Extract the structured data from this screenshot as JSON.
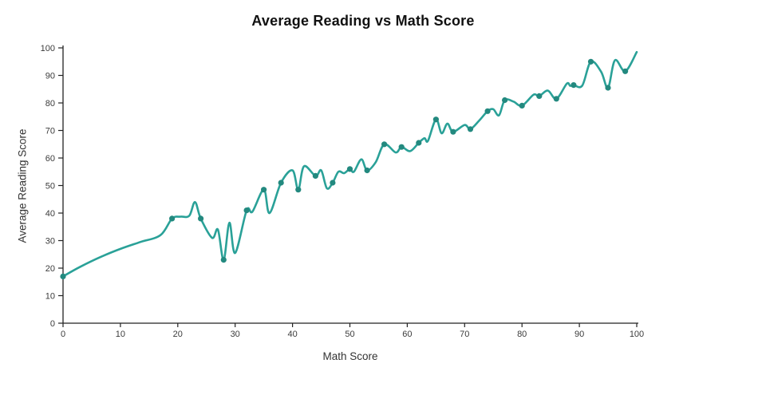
{
  "title": "Average Reading vs Math Score",
  "chart_data": {
    "type": "line",
    "title": "Average Reading vs Math Score",
    "xlabel": "Math Score",
    "ylabel": "Average Reading Score",
    "xlim": [
      0,
      100
    ],
    "ylim": [
      0,
      100
    ],
    "xticks": [
      0,
      10,
      20,
      30,
      40,
      50,
      60,
      70,
      80,
      90,
      100
    ],
    "yticks": [
      0,
      10,
      20,
      30,
      40,
      50,
      60,
      70,
      80,
      90,
      100
    ],
    "grid": false,
    "legend": false,
    "line_shape": "spline",
    "line_color": "#2aa198",
    "marker_color": "#23897f",
    "axis_color": "#222222",
    "series": [
      {
        "name": "Average Reading Score",
        "note": "points are [math_score, avg_reading_score, has_marker]",
        "points": [
          [
            0,
            17,
            1
          ],
          [
            3,
            20.5,
            0
          ],
          [
            6.5,
            24,
            0
          ],
          [
            10,
            27,
            0
          ],
          [
            13.5,
            29.5,
            0
          ],
          [
            17,
            32,
            0
          ],
          [
            19,
            38,
            1
          ],
          [
            20.5,
            38.7,
            0
          ],
          [
            22,
            39,
            0
          ],
          [
            23,
            44,
            0
          ],
          [
            24,
            38,
            1
          ],
          [
            26,
            31,
            0
          ],
          [
            27,
            34,
            0
          ],
          [
            28,
            23,
            1
          ],
          [
            29,
            36.5,
            0
          ],
          [
            30,
            25.5,
            0
          ],
          [
            32,
            41,
            1
          ],
          [
            33,
            40.5,
            0
          ],
          [
            35,
            48.5,
            1
          ],
          [
            36,
            40,
            0
          ],
          [
            38,
            51,
            1
          ],
          [
            40,
            55.5,
            0
          ],
          [
            41,
            48.5,
            1
          ],
          [
            42,
            57,
            0
          ],
          [
            44,
            53.5,
            1
          ],
          [
            45,
            55.5,
            0
          ],
          [
            46,
            49,
            0
          ],
          [
            47,
            51,
            1
          ],
          [
            48,
            55,
            0
          ],
          [
            49,
            54.5,
            0
          ],
          [
            50,
            56,
            1
          ],
          [
            50.7,
            55,
            0
          ],
          [
            52,
            59.5,
            0
          ],
          [
            53,
            55.5,
            1
          ],
          [
            54.5,
            58.5,
            0
          ],
          [
            56,
            65,
            1
          ],
          [
            58,
            62,
            0
          ],
          [
            59,
            64,
            1
          ],
          [
            60.5,
            62.5,
            0
          ],
          [
            62,
            65.5,
            1
          ],
          [
            63,
            67.2,
            0
          ],
          [
            63.6,
            66.2,
            0
          ],
          [
            65,
            74,
            1
          ],
          [
            66,
            69,
            0
          ],
          [
            67,
            72.5,
            0
          ],
          [
            68,
            69.5,
            1
          ],
          [
            70,
            72,
            0
          ],
          [
            71,
            70.5,
            1
          ],
          [
            72.5,
            73.5,
            0
          ],
          [
            74,
            77,
            1
          ],
          [
            75,
            77.7,
            0
          ],
          [
            76,
            75.5,
            0
          ],
          [
            77,
            81,
            1
          ],
          [
            78.5,
            80.5,
            0
          ],
          [
            80,
            79,
            1
          ],
          [
            82,
            83,
            0
          ],
          [
            83,
            82.5,
            1
          ],
          [
            84.5,
            84.5,
            0
          ],
          [
            86,
            81.5,
            1
          ],
          [
            87.8,
            87,
            0
          ],
          [
            88.4,
            86.2,
            0
          ],
          [
            89,
            86.5,
            1
          ],
          [
            90.5,
            86.3,
            0
          ],
          [
            92,
            95,
            1
          ],
          [
            93.8,
            91.3,
            0
          ],
          [
            95,
            85.5,
            1
          ],
          [
            96.2,
            95.5,
            0
          ],
          [
            98,
            91.5,
            1
          ],
          [
            100,
            98.5,
            0
          ]
        ]
      }
    ]
  }
}
